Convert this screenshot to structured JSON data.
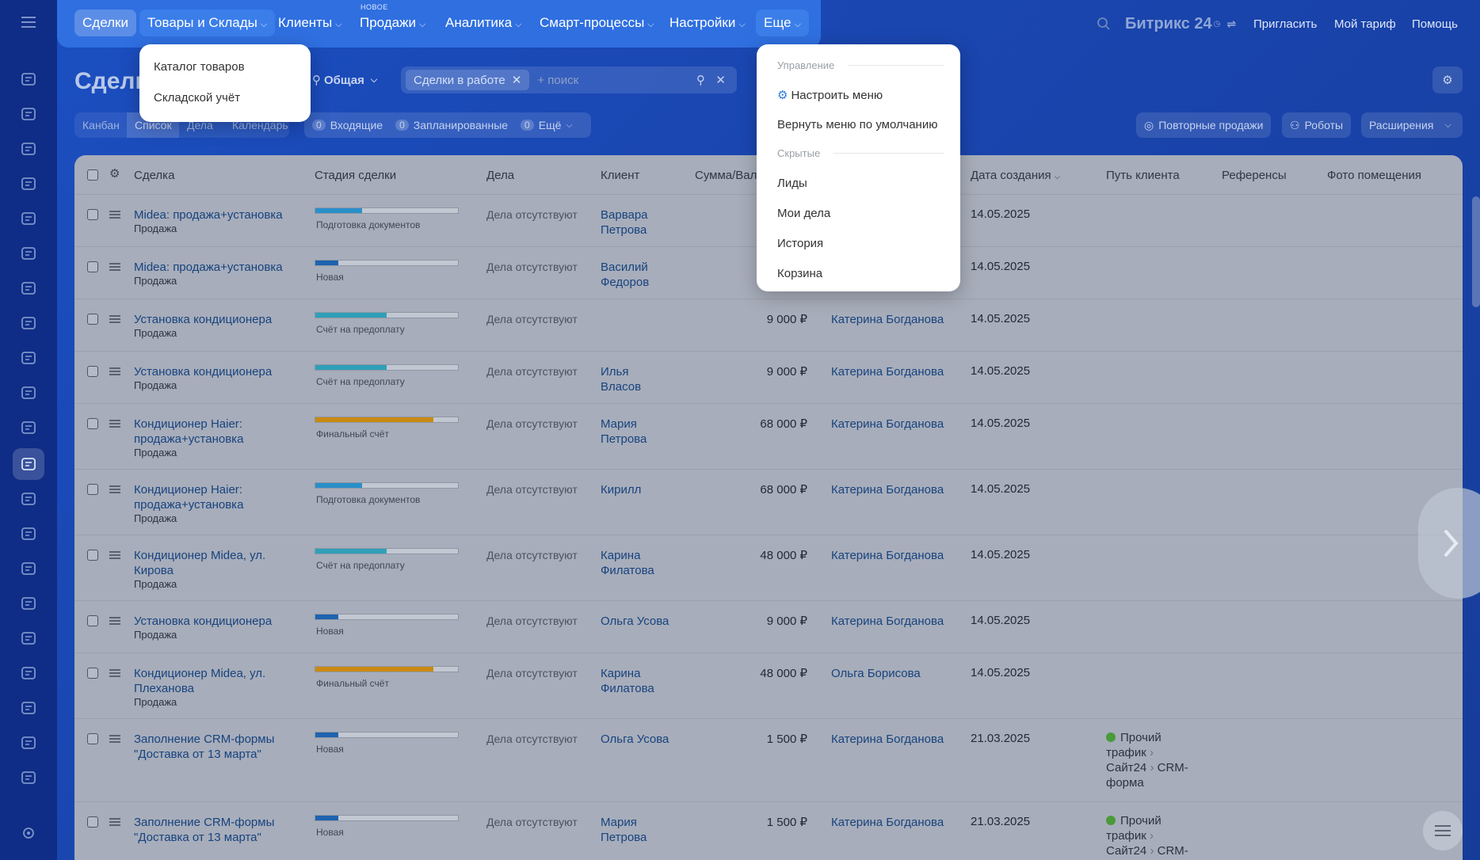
{
  "topmenu": {
    "items": [
      {
        "label": "Сделки"
      },
      {
        "label": "Товары и Склады"
      },
      {
        "label": "Клиенты"
      },
      {
        "label": "Продажи"
      },
      {
        "label": "Аналитика"
      },
      {
        "label": "Смарт-процессы"
      },
      {
        "label": "Настройки"
      },
      {
        "label": "Еще"
      }
    ],
    "new_badge": "НОВОЕ"
  },
  "header_right": {
    "brand": "Битрикс",
    "brand_num": "24",
    "invite": "Пригласить",
    "tariff": "Мой тариф",
    "help": "Помощь"
  },
  "page": {
    "title": "Сделки",
    "category": "Общая",
    "filter_chip": "Сделки в работе",
    "search_placeholder": "+ поиск"
  },
  "view_tabs": [
    "Канбан",
    "Список",
    "Дела",
    "Календарь"
  ],
  "counters": [
    {
      "count": "0",
      "label": "Входящие"
    },
    {
      "count": "0",
      "label": "Запланированные"
    },
    {
      "count": "0",
      "label": "Ещё"
    }
  ],
  "right_buttons": {
    "repeat_sales": "Повторные продажи",
    "robots": "Роботы",
    "extensions": "Расширения"
  },
  "goods_menu": {
    "items": [
      "Каталог товаров",
      "Складской учёт"
    ]
  },
  "more_menu": {
    "section_manage": "Управление",
    "configure": "Настроить меню",
    "reset": "Вернуть меню по умолчанию",
    "section_hidden": "Скрытые",
    "hidden_items": [
      "Лиды",
      "Мои дела",
      "История",
      "Корзина"
    ]
  },
  "table": {
    "columns": [
      "Сделка",
      "Стадия сделки",
      "Дела",
      "Клиент",
      "Сумма/Вал",
      "Дата создания",
      "Путь клиента",
      "Референсы",
      "Фото помещения"
    ],
    "rows": [
      {
        "title1": "Midea: продажа+установка",
        "title2": "",
        "sub": "Продажа",
        "stage": "Подготовка документов",
        "stage_level": 0.33,
        "stage_color": "#2a8fc9",
        "tasks": "Дела отсутствуют",
        "client1": "Варвара",
        "client2": "Петрова",
        "amount": "",
        "responsible": "",
        "date": "14.05.2025",
        "path": []
      },
      {
        "title1": "Midea: продажа+установка",
        "title2": "",
        "sub": "Продажа",
        "stage": "Новая",
        "stage_level": 0.16,
        "stage_color": "#1e63b0",
        "tasks": "Дела отсутствуют",
        "client1": "Василий",
        "client2": "Федоров",
        "amount": "",
        "responsible": "",
        "date": "14.05.2025",
        "path": []
      },
      {
        "title1": "Установка кондиционера",
        "title2": "",
        "sub": "Продажа",
        "stage": "Счёт на предоплату",
        "stage_level": 0.5,
        "stage_color": "#2fa0b8",
        "tasks": "Дела отсутствуют",
        "client1": "",
        "client2": "",
        "amount": "9 000 ₽",
        "responsible": "Катерина Богданова",
        "date": "14.05.2025",
        "path": []
      },
      {
        "title1": "Установка кондиционера",
        "title2": "",
        "sub": "Продажа",
        "stage": "Счёт на предоплату",
        "stage_level": 0.5,
        "stage_color": "#2fa0b8",
        "tasks": "Дела отсутствуют",
        "client1": "Илья",
        "client2": "Власов",
        "amount": "9 000 ₽",
        "responsible": "Катерина Богданова",
        "date": "14.05.2025",
        "path": []
      },
      {
        "title1": "Кондиционер Haier:",
        "title2": "продажа+установка",
        "sub": "Продажа",
        "stage": "Финальный счёт",
        "stage_level": 0.83,
        "stage_color": "#c98a12",
        "tasks": "Дела отсутствуют",
        "client1": "Мария",
        "client2": "Петрова",
        "amount": "68 000 ₽",
        "responsible": "Катерина Богданова",
        "date": "14.05.2025",
        "path": []
      },
      {
        "title1": "Кондиционер Haier:",
        "title2": "продажа+установка",
        "sub": "Продажа",
        "stage": "Подготовка документов",
        "stage_level": 0.33,
        "stage_color": "#2a8fc9",
        "tasks": "Дела отсутствуют",
        "client1": "Кирилл",
        "client2": "",
        "amount": "68 000 ₽",
        "responsible": "Катерина Богданова",
        "date": "14.05.2025",
        "path": []
      },
      {
        "title1": "Кондиционер Midea, ул.",
        "title2": "Кирова",
        "sub": "Продажа",
        "stage": "Счёт на предоплату",
        "stage_level": 0.5,
        "stage_color": "#2fa0b8",
        "tasks": "Дела отсутствуют",
        "client1": "Карина",
        "client2": "Филатова",
        "amount": "48 000 ₽",
        "responsible": "Катерина Богданова",
        "date": "14.05.2025",
        "path": []
      },
      {
        "title1": "Установка кондиционера",
        "title2": "",
        "sub": "Продажа",
        "stage": "Новая",
        "stage_level": 0.16,
        "stage_color": "#1e63b0",
        "tasks": "Дела отсутствуют",
        "client1": "Ольга Усова",
        "client2": "",
        "amount": "9 000 ₽",
        "responsible": "Катерина Богданова",
        "date": "14.05.2025",
        "path": []
      },
      {
        "title1": "Кондиционер Midea, ул.",
        "title2": "Плеханова",
        "sub": "Продажа",
        "stage": "Финальный счёт",
        "stage_level": 0.83,
        "stage_color": "#c98a12",
        "tasks": "Дела отсутствуют",
        "client1": "Карина",
        "client2": "Филатова",
        "amount": "48 000 ₽",
        "responsible": "Ольга Борисова",
        "date": "14.05.2025",
        "path": []
      },
      {
        "title1": "Заполнение CRM-формы",
        "title2": "\"Доставка от 13 марта\"",
        "sub": "",
        "stage": "Новая",
        "stage_level": 0.16,
        "stage_color": "#1e63b0",
        "tasks": "Дела отсутствуют",
        "client1": "Ольга Усова",
        "client2": "",
        "amount": "1 500 ₽",
        "responsible": "Катерина Богданова",
        "date": "21.03.2025",
        "path": [
          "Прочий",
          "трафик",
          "Сайт24",
          "CRM-",
          "форма"
        ]
      },
      {
        "title1": "Заполнение CRM-формы",
        "title2": "\"Доставка от 13 марта\"",
        "sub": "",
        "stage": "Новая",
        "stage_level": 0.16,
        "stage_color": "#1e63b0",
        "tasks": "Дела отсутствуют",
        "client1": "Мария",
        "client2": "Петрова",
        "amount": "1 500 ₽",
        "responsible": "Катерина Богданова",
        "date": "21.03.2025",
        "path": [
          "Прочий",
          "трафик",
          "Сайт24",
          "CRM-",
          ""
        ]
      }
    ]
  }
}
